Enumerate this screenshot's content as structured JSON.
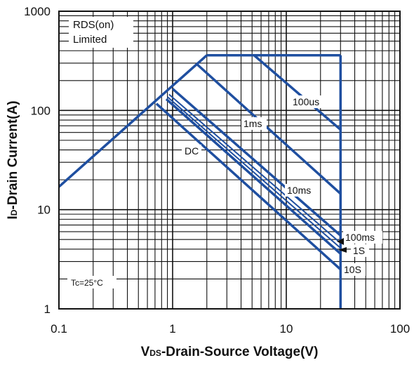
{
  "chart_data": {
    "type": "line",
    "xscale": "log",
    "yscale": "log",
    "xlim": [
      0.1,
      100
    ],
    "ylim": [
      1,
      1000
    ],
    "grid": true,
    "xticks": [
      "0.1",
      "1",
      "10",
      "100"
    ],
    "yticks": [
      "1",
      "10",
      "100",
      "1000"
    ],
    "xlabel_main": "V",
    "xlabel_sub": "DS",
    "xlabel_rest": "-Drain-Source Voltage(V)",
    "ylabel_main": "I",
    "ylabel_sub": "D",
    "ylabel_rest": "-Drain Current(A)",
    "line_color": "#1f4fa0",
    "rds_limit": {
      "label_line1": "RDS(on)",
      "label_line2": "Limited",
      "x": [
        0.1,
        2.0
      ],
      "y": [
        17,
        360
      ]
    },
    "current_limit": {
      "x": [
        2.0,
        30
      ],
      "y": [
        360,
        360
      ]
    },
    "voltage_limit": {
      "x": [
        30,
        30
      ],
      "y": [
        1,
        360
      ]
    },
    "series": [
      {
        "name": "100us",
        "x": [
          5.2,
          30
        ],
        "y": [
          360,
          64
        ]
      },
      {
        "name": "1ms",
        "x": [
          1.65,
          30
        ],
        "y": [
          290,
          14.5
        ]
      },
      {
        "name": "10ms",
        "x": [
          1.0,
          30
        ],
        "y": [
          165,
          5.5
        ]
      },
      {
        "name": "100ms",
        "x": [
          0.93,
          30
        ],
        "y": [
          145,
          4.6
        ]
      },
      {
        "name": "1S",
        "x": [
          0.9,
          30
        ],
        "y": [
          137,
          4.1
        ]
      },
      {
        "name": "10S",
        "x": [
          0.88,
          30
        ],
        "y": [
          130,
          3.6
        ]
      },
      {
        "name": "DC",
        "x": [
          0.72,
          30
        ],
        "y": [
          117,
          2.5
        ]
      }
    ],
    "annotations": {
      "tc": "Tc=25°C",
      "label_100us": "100us",
      "label_1ms": "1ms",
      "label_10ms": "10ms",
      "label_100ms": "100ms",
      "label_1s": "1S",
      "label_10s": "10S",
      "label_dc": "DC"
    }
  }
}
